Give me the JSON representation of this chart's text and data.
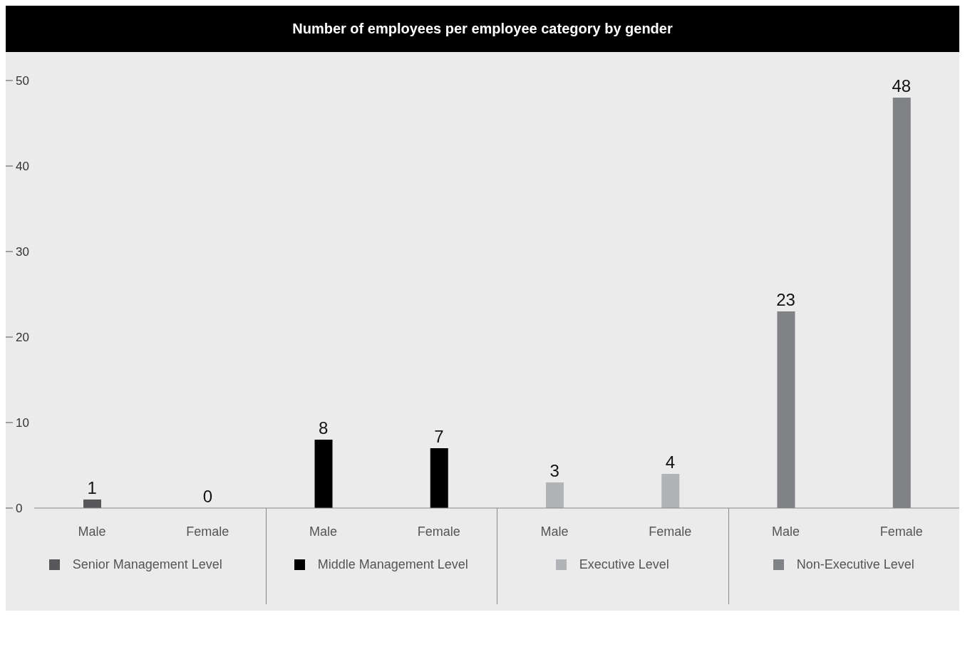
{
  "chart_data": {
    "type": "bar",
    "title": "Number of employees per employee category by gender",
    "categories": [
      "Male",
      "Female",
      "Male",
      "Female",
      "Male",
      "Female",
      "Male",
      "Female"
    ],
    "series": [
      {
        "name": "Senior Management Level",
        "color": "#58585a",
        "values": [
          1,
          0,
          null,
          null,
          null,
          null,
          null,
          null
        ]
      },
      {
        "name": "Middle Management Level",
        "color": "#000000",
        "values": [
          null,
          null,
          8,
          7,
          null,
          null,
          null,
          null
        ]
      },
      {
        "name": "Executive Level",
        "color": "#b1b3b6",
        "values": [
          null,
          null,
          null,
          null,
          3,
          4,
          null,
          null
        ]
      },
      {
        "name": "Non-Executive Level",
        "color": "#808285",
        "values": [
          null,
          null,
          null,
          null,
          null,
          null,
          23,
          48
        ]
      }
    ],
    "ylim": [
      0,
      50
    ],
    "yticks": [
      0,
      10,
      20,
      30,
      40,
      50
    ],
    "grid": false,
    "legend": "bottom",
    "data_labels": true
  }
}
